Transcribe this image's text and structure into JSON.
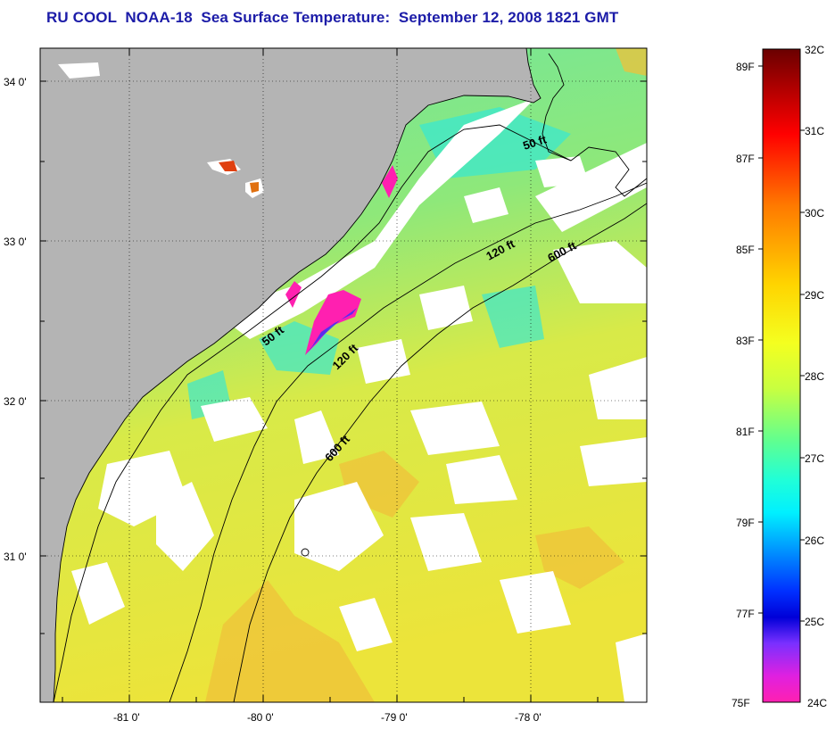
{
  "title": "RU COOL  NOAA-18  Sea Surface Temperature:  September 12, 2008 1821 GMT",
  "map": {
    "lat_labels": [
      "34 0'",
      "33 0'",
      "32 0'",
      "31 0'"
    ],
    "lon_labels": [
      "-81 0'",
      "-80 0'",
      "-79 0'",
      "-78 0'"
    ],
    "contours": [
      "50 ft",
      "50 ft",
      "120 ft",
      "120 ft",
      "600 ft",
      "600 ft"
    ]
  },
  "colorbar": {
    "celsius": [
      "32C",
      "31C",
      "30C",
      "29C",
      "28C",
      "27C",
      "26C",
      "25C",
      "24C"
    ],
    "fahrenheit": [
      "89F",
      "87F",
      "85F",
      "83F",
      "81F",
      "79F",
      "77F",
      "75F"
    ]
  },
  "colors": {
    "title": "#1c1ca8",
    "land": "#b4b4b4",
    "cloud": "#ffffff",
    "ocean_cool": "#5fe8a8",
    "ocean_warm": "#e8e84a"
  }
}
